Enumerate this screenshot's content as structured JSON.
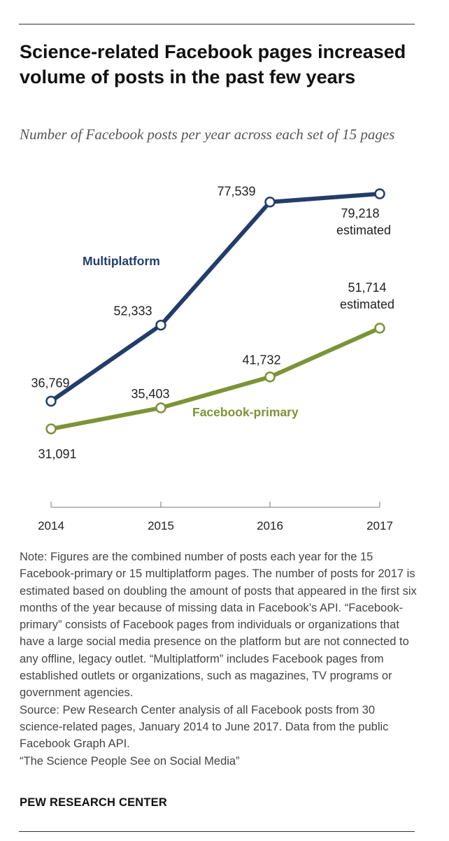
{
  "header": {
    "title": "Science-related Facebook pages increased volume of posts in the past few years",
    "subtitle": "Number of Facebook posts per year across each set of 15 pages"
  },
  "chart_data": {
    "type": "line",
    "x": [
      "2014",
      "2015",
      "2016",
      "2017"
    ],
    "series": [
      {
        "name": "Multiplatform",
        "color": "#233d6a",
        "values": [
          36769,
          52333,
          77539,
          79218
        ],
        "labels": [
          "36,769",
          "52,333",
          "77,539",
          "79,218"
        ],
        "label_notes": [
          "",
          "",
          "",
          "estimated"
        ]
      },
      {
        "name": "Facebook-primary",
        "color": "#7d9337",
        "values": [
          31091,
          35403,
          41732,
          51714
        ],
        "labels": [
          "31,091",
          "35,403",
          "41,732",
          "51,714"
        ],
        "label_notes": [
          "",
          "",
          "",
          "estimated"
        ]
      }
    ],
    "ylim": [
      31091,
      79218
    ],
    "grid": false,
    "legend": "inline labels"
  },
  "notes": {
    "note": "Note: Figures are the combined number of posts each year for the 15 Facebook-primary or 15 multiplatform pages. The number of posts for 2017 is estimated based on doubling the amount of posts that appeared in the first six months of the year because of missing data in Facebook’s API. “Facebook-primary” consists of Facebook pages from individuals or organizations that have a large social media presence on the platform but are not connected to any offline, legacy outlet. “Multiplatform” includes Facebook pages from established outlets or organizations, such as magazines, TV programs or government agencies.",
    "source": "Source: Pew Research Center analysis of all Facebook posts from 30 science-related pages, January 2014 to June 2017. Data from the public Facebook Graph API.",
    "report": "“The Science People See on Social Media”"
  },
  "footer": {
    "credit": "PEW RESEARCH CENTER"
  }
}
